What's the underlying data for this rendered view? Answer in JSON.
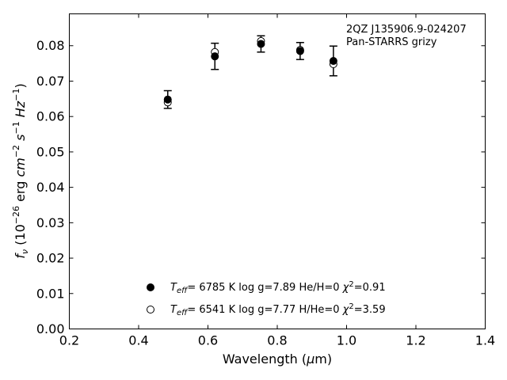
{
  "chart_data": {
    "type": "scatter",
    "xlabel": "Wavelength (μm)",
    "ylabel": "f_ν (10^−26 erg cm^−2 s^−1 Hz^−1)",
    "xlim": [
      0.2,
      1.4
    ],
    "ylim": [
      0.0,
      0.089
    ],
    "xticks": [
      "0.2",
      "0.4",
      "0.6",
      "0.8",
      "1.0",
      "1.2",
      "1.4"
    ],
    "xtick_values": [
      0.2,
      0.4,
      0.6,
      0.8,
      1.0,
      1.2,
      1.4
    ],
    "yticks": [
      "0.00",
      "0.01",
      "0.02",
      "0.03",
      "0.04",
      "0.05",
      "0.06",
      "0.07",
      "0.08"
    ],
    "ytick_values": [
      0.0,
      0.01,
      0.02,
      0.03,
      0.04,
      0.05,
      0.06,
      0.07,
      0.08
    ],
    "grid": false,
    "annotation": [
      "2QZ J135906.9-024207",
      "Pan-STARRS grizy"
    ],
    "legend_position": "bottom-center",
    "observed": {
      "x": [
        0.484,
        0.62,
        0.753,
        0.866,
        0.962
      ],
      "y": [
        0.0648,
        0.077,
        0.0805,
        0.0785,
        0.0757
      ],
      "err": [
        0.0025,
        0.0037,
        0.0023,
        0.0024,
        0.0042
      ],
      "color": "#000000"
    },
    "series": [
      {
        "marker": "filled-circle",
        "teff": "6785 K",
        "logg": "log g=7.89",
        "comp": "He/H=0",
        "chi": "=0.91",
        "x": [
          0.484,
          0.62,
          0.753,
          0.866,
          0.962
        ],
        "y": [
          0.0648,
          0.077,
          0.0805,
          0.0785,
          0.0757
        ]
      },
      {
        "marker": "open-circle",
        "teff": "6541 K",
        "logg": "log g=7.77",
        "comp": "H/He=0",
        "chi": "=3.59",
        "x": [
          0.484,
          0.62,
          0.753,
          0.866,
          0.962
        ],
        "y": [
          0.064,
          0.0782,
          0.0813,
          0.0788,
          0.0748
        ]
      }
    ]
  }
}
